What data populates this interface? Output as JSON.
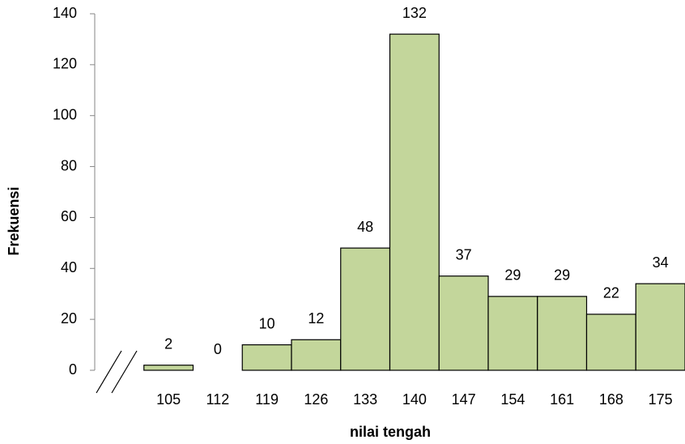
{
  "chart_data": {
    "type": "bar",
    "x_label": "nilai tengah",
    "y_label": "Frekuensi",
    "categories": [
      105,
      112,
      119,
      126,
      133,
      140,
      147,
      154,
      161,
      168,
      175
    ],
    "values": [
      2,
      0,
      10,
      12,
      48,
      132,
      37,
      29,
      29,
      22,
      34
    ],
    "color": "#c3d69b",
    "ylim": [
      0,
      140
    ],
    "yticks": [
      0,
      20,
      40,
      60,
      80,
      100,
      120,
      140
    ],
    "grid": false
  }
}
